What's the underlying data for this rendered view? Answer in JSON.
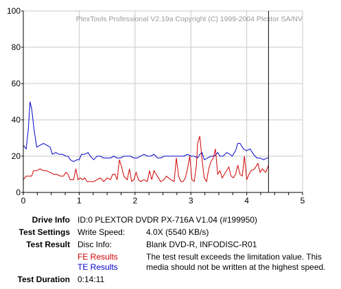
{
  "chart_data": {
    "type": "line",
    "title": "PlexTools Professional V2.19a Copyright (C) 1999-2004 Plextor SA/NV",
    "xlabel": "",
    "ylabel": "",
    "xlim": [
      0,
      5
    ],
    "ylim": [
      0,
      100
    ],
    "x_ticks": [
      "0",
      "1",
      "2",
      "3",
      "4",
      "5"
    ],
    "y_ticks": [
      "0",
      "20",
      "40",
      "60",
      "80",
      "100"
    ],
    "grid": true,
    "vline_x": 4.39,
    "series": [
      {
        "name": "TE Results",
        "color": "#0000c8",
        "points": [
          [
            0.0,
            26
          ],
          [
            0.05,
            24
          ],
          [
            0.09,
            35
          ],
          [
            0.12,
            50
          ],
          [
            0.15,
            46
          ],
          [
            0.19,
            35
          ],
          [
            0.24,
            25
          ],
          [
            0.3,
            26
          ],
          [
            0.36,
            27
          ],
          [
            0.42,
            26
          ],
          [
            0.48,
            25
          ],
          [
            0.52,
            21
          ],
          [
            0.58,
            22
          ],
          [
            0.64,
            21
          ],
          [
            0.7,
            21
          ],
          [
            0.76,
            20
          ],
          [
            0.8,
            20
          ],
          [
            0.84,
            18
          ],
          [
            0.9,
            17
          ],
          [
            0.96,
            18
          ],
          [
            1.0,
            18
          ],
          [
            1.04,
            21
          ],
          [
            1.1,
            21
          ],
          [
            1.16,
            22
          ],
          [
            1.2,
            20
          ],
          [
            1.26,
            18
          ],
          [
            1.32,
            20
          ],
          [
            1.38,
            20
          ],
          [
            1.44,
            19
          ],
          [
            1.5,
            19
          ],
          [
            1.56,
            19
          ],
          [
            1.62,
            20
          ],
          [
            1.68,
            19
          ],
          [
            1.74,
            19
          ],
          [
            1.8,
            20
          ],
          [
            1.86,
            20
          ],
          [
            1.92,
            20
          ],
          [
            1.98,
            19
          ],
          [
            2.04,
            19
          ],
          [
            2.1,
            20
          ],
          [
            2.16,
            21
          ],
          [
            2.22,
            20
          ],
          [
            2.28,
            20
          ],
          [
            2.34,
            21
          ],
          [
            2.4,
            19
          ],
          [
            2.46,
            19
          ],
          [
            2.52,
            20
          ],
          [
            2.58,
            20
          ],
          [
            2.64,
            20
          ],
          [
            2.7,
            20
          ],
          [
            2.76,
            20
          ],
          [
            2.82,
            20
          ],
          [
            2.88,
            20
          ],
          [
            2.94,
            21
          ],
          [
            3.0,
            20
          ],
          [
            3.06,
            20
          ],
          [
            3.12,
            19
          ],
          [
            3.16,
            21
          ],
          [
            3.2,
            22
          ],
          [
            3.24,
            18
          ],
          [
            3.3,
            19
          ],
          [
            3.36,
            20
          ],
          [
            3.42,
            20
          ],
          [
            3.48,
            22
          ],
          [
            3.52,
            20
          ],
          [
            3.58,
            20
          ],
          [
            3.64,
            22
          ],
          [
            3.7,
            21
          ],
          [
            3.74,
            20
          ],
          [
            3.8,
            23
          ],
          [
            3.84,
            27
          ],
          [
            3.88,
            27
          ],
          [
            3.94,
            24
          ],
          [
            4.0,
            23
          ],
          [
            4.06,
            24
          ],
          [
            4.12,
            21
          ],
          [
            4.18,
            19
          ],
          [
            4.24,
            19
          ],
          [
            4.3,
            18
          ],
          [
            4.36,
            19
          ],
          [
            4.39,
            19
          ]
        ]
      },
      {
        "name": "FE Results",
        "color": "#d00000",
        "points": [
          [
            0.0,
            7
          ],
          [
            0.05,
            9
          ],
          [
            0.1,
            9
          ],
          [
            0.15,
            9
          ],
          [
            0.18,
            12
          ],
          [
            0.24,
            12
          ],
          [
            0.3,
            13
          ],
          [
            0.36,
            12
          ],
          [
            0.42,
            12
          ],
          [
            0.48,
            11
          ],
          [
            0.54,
            10
          ],
          [
            0.6,
            10
          ],
          [
            0.66,
            9
          ],
          [
            0.72,
            9
          ],
          [
            0.76,
            11
          ],
          [
            0.8,
            10
          ],
          [
            0.84,
            7
          ],
          [
            0.9,
            7
          ],
          [
            0.94,
            13
          ],
          [
            0.98,
            7
          ],
          [
            1.02,
            8
          ],
          [
            1.06,
            7
          ],
          [
            1.1,
            8
          ],
          [
            1.14,
            6
          ],
          [
            1.2,
            6
          ],
          [
            1.26,
            6
          ],
          [
            1.32,
            7
          ],
          [
            1.38,
            8
          ],
          [
            1.44,
            6
          ],
          [
            1.5,
            8
          ],
          [
            1.56,
            7
          ],
          [
            1.6,
            10
          ],
          [
            1.64,
            10
          ],
          [
            1.68,
            7
          ],
          [
            1.72,
            18
          ],
          [
            1.76,
            14
          ],
          [
            1.8,
            9
          ],
          [
            1.86,
            7
          ],
          [
            1.9,
            13
          ],
          [
            1.94,
            6
          ],
          [
            1.98,
            7
          ],
          [
            2.02,
            11
          ],
          [
            2.06,
            7
          ],
          [
            2.1,
            6
          ],
          [
            2.16,
            7
          ],
          [
            2.22,
            6
          ],
          [
            2.26,
            12
          ],
          [
            2.3,
            7
          ],
          [
            2.34,
            12
          ],
          [
            2.38,
            10
          ],
          [
            2.42,
            8
          ],
          [
            2.46,
            6
          ],
          [
            2.52,
            7
          ],
          [
            2.56,
            9
          ],
          [
            2.6,
            8
          ],
          [
            2.64,
            7
          ],
          [
            2.7,
            6
          ],
          [
            2.74,
            19
          ],
          [
            2.78,
            9
          ],
          [
            2.82,
            6
          ],
          [
            2.86,
            6
          ],
          [
            2.9,
            8
          ],
          [
            2.94,
            13
          ],
          [
            2.98,
            20
          ],
          [
            3.02,
            7
          ],
          [
            3.06,
            6
          ],
          [
            3.1,
            15
          ],
          [
            3.12,
            27
          ],
          [
            3.16,
            31
          ],
          [
            3.2,
            18
          ],
          [
            3.24,
            8
          ],
          [
            3.28,
            6
          ],
          [
            3.32,
            13
          ],
          [
            3.36,
            17
          ],
          [
            3.4,
            19
          ],
          [
            3.44,
            24
          ],
          [
            3.48,
            10
          ],
          [
            3.52,
            12
          ],
          [
            3.56,
            8
          ],
          [
            3.62,
            11
          ],
          [
            3.68,
            14
          ],
          [
            3.72,
            9
          ],
          [
            3.76,
            8
          ],
          [
            3.8,
            10
          ],
          [
            3.84,
            15
          ],
          [
            3.88,
            10
          ],
          [
            3.92,
            9
          ],
          [
            3.96,
            20
          ],
          [
            4.0,
            7
          ],
          [
            4.04,
            10
          ],
          [
            4.08,
            12
          ],
          [
            4.14,
            13
          ],
          [
            4.2,
            16
          ],
          [
            4.24,
            11
          ],
          [
            4.28,
            13
          ],
          [
            4.34,
            11
          ],
          [
            4.39,
            15
          ]
        ]
      }
    ]
  },
  "info": {
    "drive_info_label": "Drive Info",
    "drive_info_value": "ID:0 PLEXTOR DVDR PX-716A V1.04 (#199950)",
    "test_settings_label": "Test Settings",
    "write_speed_label": "Write Speed:",
    "write_speed_value": "4.0X (5540 KB/s)",
    "test_result_label": "Test Result",
    "disc_info_label": "Disc Info:",
    "disc_info_value": "Blank DVD-R, INFODISC-R01",
    "fe_label": "FE Results",
    "te_label": "TE Results",
    "result_line1": "The test result exceeds the limitation value. This",
    "result_line2": "media should not be written at the highest speed.",
    "test_duration_label": "Test Duration",
    "test_duration_value": "0:14:11"
  },
  "colors": {
    "fe": "#d00000",
    "te": "#0000c8",
    "grid": "#c8c8c8",
    "axis": "#000000",
    "watermark": "#9a9a9a"
  }
}
